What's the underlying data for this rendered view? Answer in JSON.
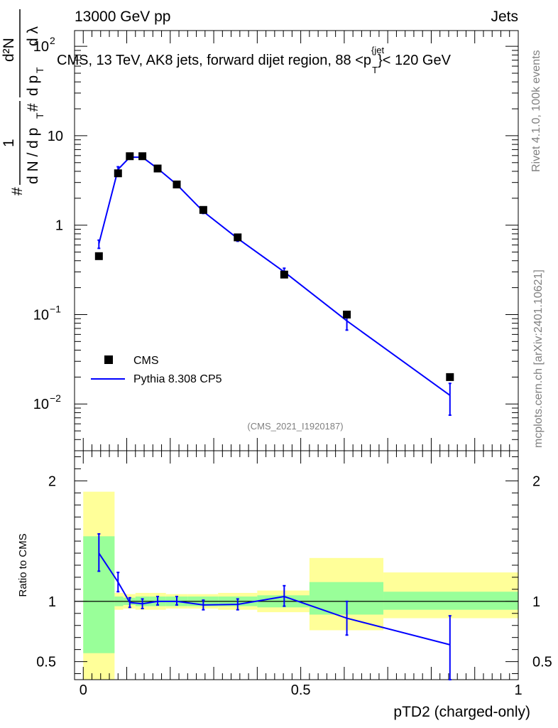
{
  "header": {
    "left": "13000 GeV pp",
    "right": "Jets",
    "side_top": "Rivet 4.1.0,  100k events",
    "side_bottom": "mcplots.cern.ch [arXiv:2401.10621]"
  },
  "chart_data": [
    {
      "type": "scatter",
      "title": "CMS, 13 TeV, AK8 jets, forward dijet region, 88 <p_T^{jet}< 120 GeV",
      "title_parts": {
        "a": "CMS, 13 TeV, AK8 jets, forward dijet region, 88 <p",
        "sup": "{jet",
        "sub": "T",
        "b": "}< 120 GeV"
      },
      "analysis_label": "(CMS_2021_I1920187)",
      "ylabel_parts": {
        "hash1": "#",
        "one": "1",
        "dN": "d N / d p",
        "T": "T",
        "hash2": "#",
        "d2N": "d²N",
        "dpT": "d p",
        "T2": "T",
        "dlam": "d λ"
      },
      "yscale": "log",
      "ylim": [
        0.003,
        150
      ],
      "xlim": [
        -0.02,
        1.0
      ],
      "y_ticks": [
        {
          "value": 0.01,
          "base": "10",
          "exp": "−2"
        },
        {
          "value": 0.1,
          "base": "10",
          "exp": "−1"
        },
        {
          "value": 1,
          "label": "1"
        },
        {
          "value": 10,
          "label": "10"
        },
        {
          "value": 100,
          "label": "10",
          "exp": "2"
        }
      ],
      "legend": [
        "CMS",
        "Pythia 8.308 CP5"
      ],
      "legend_position": "lower-left",
      "series": [
        {
          "name": "CMS",
          "marker": "square",
          "color": "#000000",
          "x": [
            0.036,
            0.08,
            0.107,
            0.136,
            0.171,
            0.215,
            0.276,
            0.355,
            0.462,
            0.606,
            0.843
          ],
          "y": [
            0.45,
            3.8,
            5.9,
            5.9,
            4.3,
            2.85,
            1.48,
            0.73,
            0.28,
            0.1,
            0.02
          ]
        },
        {
          "name": "Pythia 8.308 CP5",
          "marker": "line",
          "color": "#0000ff",
          "x": [
            0.036,
            0.08,
            0.107,
            0.136,
            0.171,
            0.215,
            0.276,
            0.355,
            0.462,
            0.606,
            0.843
          ],
          "y": [
            0.62,
            4.2,
            5.75,
            5.75,
            4.3,
            2.85,
            1.42,
            0.71,
            0.3,
            0.085,
            0.0125
          ],
          "err_lo": [
            0.55,
            3.9,
            5.55,
            5.55,
            4.15,
            2.75,
            1.35,
            0.66,
            0.27,
            0.067,
            0.0075
          ],
          "err_hi": [
            0.68,
            4.5,
            5.95,
            5.95,
            4.45,
            2.95,
            1.52,
            0.76,
            0.33,
            0.102,
            0.017
          ]
        }
      ]
    },
    {
      "type": "line",
      "ylabel": "Ratio to CMS",
      "xlabel": "pTD2 (charged-only)",
      "xlim": [
        -0.02,
        1.0
      ],
      "ylim": [
        0.35,
        2.25
      ],
      "x_ticks": [
        {
          "value": 0,
          "label": "0"
        },
        {
          "value": 0.5,
          "label": "0.5"
        },
        {
          "value": 1,
          "label": "1"
        }
      ],
      "y_ticks": [
        {
          "value": 0.5,
          "label": "0.5"
        },
        {
          "value": 1,
          "label": "1"
        },
        {
          "value": 2,
          "label": "2"
        }
      ],
      "reference_line": 1,
      "bands": {
        "edges": [
          0.0,
          0.072,
          0.092,
          0.12,
          0.152,
          0.19,
          0.24,
          0.31,
          0.4,
          0.52,
          0.69,
          1.0
        ],
        "yellow_lo": [
          0.3,
          0.93,
          0.94,
          0.93,
          0.93,
          0.94,
          0.94,
          0.93,
          0.91,
          0.76,
          0.86
        ],
        "yellow_hi": [
          1.91,
          1.07,
          1.06,
          1.07,
          1.07,
          1.06,
          1.06,
          1.07,
          1.09,
          1.36,
          1.24
        ],
        "green_lo": [
          0.57,
          0.96,
          0.97,
          0.96,
          0.96,
          0.96,
          0.96,
          0.96,
          0.95,
          0.89,
          0.93
        ],
        "green_hi": [
          1.54,
          1.04,
          1.03,
          1.04,
          1.04,
          1.04,
          1.04,
          1.04,
          1.05,
          1.16,
          1.08
        ]
      },
      "series": [
        {
          "name": "Pythia 8.308 CP5",
          "color": "#0000ff",
          "x": [
            0.036,
            0.08,
            0.107,
            0.136,
            0.171,
            0.215,
            0.276,
            0.355,
            0.462,
            0.606,
            0.843
          ],
          "y": [
            1.4,
            1.16,
            0.99,
            0.98,
            1.0,
            1.0,
            0.97,
            0.975,
            1.04,
            0.86,
            0.64
          ],
          "err_lo": [
            1.25,
            1.08,
            0.95,
            0.94,
            0.97,
            0.97,
            0.93,
            0.93,
            0.96,
            0.72,
            0.35
          ],
          "err_hi": [
            1.56,
            1.24,
            1.03,
            1.02,
            1.04,
            1.04,
            1.01,
            1.02,
            1.13,
            1.0,
            0.88
          ]
        }
      ]
    }
  ]
}
